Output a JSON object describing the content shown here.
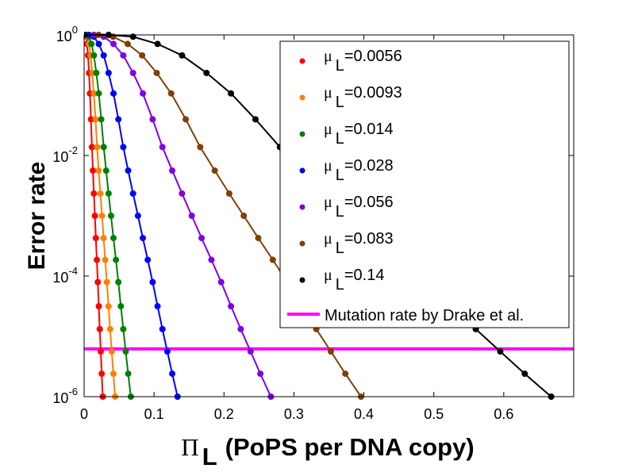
{
  "chart_data": {
    "type": "scatter",
    "xlabel_symbol": "Π",
    "xlabel_sub": "L",
    "xlabel_rest": "(PoPS per DNA copy)",
    "ylabel": "Error rate",
    "xlim": [
      0,
      0.7
    ],
    "ylim": [
      1e-06,
      1
    ],
    "yscale": "log",
    "grid": false,
    "legend_position": "top-right",
    "xticks": [
      "0",
      "0.1",
      "0.2",
      "0.3",
      "0.4",
      "0.5",
      "0.6"
    ],
    "xtick_values": [
      0,
      0.1,
      0.2,
      0.3,
      0.4,
      0.5,
      0.6
    ],
    "yticks": [
      {
        "base": "10",
        "exp": "0"
      },
      {
        "base": "10",
        "exp": "-2"
      },
      {
        "base": "10",
        "exp": "-4"
      },
      {
        "base": "10",
        "exp": "-6"
      }
    ],
    "ytick_values": [
      1,
      0.01,
      0.0001,
      1e-06
    ],
    "y": [
      1,
      1,
      0.933,
      0.708,
      0.457,
      0.234,
      0.107,
      0.0398,
      0.0138,
      0.00562,
      0.00234,
      0.001,
      0.000427,
      0.000186,
      7.94e-05,
      3.16e-05,
      1.32e-05,
      5.62e-06,
      2.4e-06,
      1e-06
    ],
    "series": [
      {
        "name_symbol": "μ",
        "name_sub": "L",
        "name_value": "=0.0056",
        "color": "#ff0000",
        "x": [
          0,
          0.0014,
          0.0028,
          0.0042,
          0.0056,
          0.007,
          0.0084,
          0.0098,
          0.0112,
          0.0126,
          0.014,
          0.0154,
          0.0168,
          0.0182,
          0.0196,
          0.021,
          0.0224,
          0.0238,
          0.0252,
          0.0267
        ]
      },
      {
        "name_symbol": "μ",
        "name_sub": "L",
        "name_value": "=0.0093",
        "color": "#ff8000",
        "x": [
          0,
          0.0023,
          0.0047,
          0.007,
          0.0093,
          0.0116,
          0.014,
          0.0163,
          0.0186,
          0.0209,
          0.0233,
          0.0256,
          0.0279,
          0.0302,
          0.0326,
          0.0349,
          0.0372,
          0.0395,
          0.0419,
          0.0444
        ]
      },
      {
        "name_symbol": "μ",
        "name_sub": "L",
        "name_value": "=0.014",
        "color": "#008000",
        "x": [
          0,
          0.0035,
          0.007,
          0.0105,
          0.014,
          0.0175,
          0.021,
          0.0245,
          0.028,
          0.0315,
          0.035,
          0.0385,
          0.042,
          0.0455,
          0.049,
          0.0525,
          0.056,
          0.0595,
          0.063,
          0.0668
        ]
      },
      {
        "name_symbol": "μ",
        "name_sub": "L",
        "name_value": "=0.028",
        "color": "#0000ff",
        "x": [
          0,
          0.007,
          0.014,
          0.021,
          0.028,
          0.035,
          0.042,
          0.049,
          0.056,
          0.063,
          0.07,
          0.077,
          0.084,
          0.091,
          0.098,
          0.105,
          0.112,
          0.119,
          0.126,
          0.1336
        ]
      },
      {
        "name_symbol": "μ",
        "name_sub": "L",
        "name_value": "=0.056",
        "color": "#8000e0",
        "x": [
          0,
          0.014,
          0.028,
          0.042,
          0.056,
          0.07,
          0.084,
          0.098,
          0.112,
          0.126,
          0.14,
          0.154,
          0.168,
          0.182,
          0.196,
          0.21,
          0.224,
          0.238,
          0.252,
          0.2671
        ]
      },
      {
        "name_symbol": "μ",
        "name_sub": "L",
        "name_value": "=0.083",
        "color": "#804000",
        "x": [
          0,
          0.0208,
          0.0415,
          0.0623,
          0.083,
          0.1038,
          0.1245,
          0.1453,
          0.166,
          0.1868,
          0.2075,
          0.2283,
          0.249,
          0.2698,
          0.2905,
          0.3113,
          0.332,
          0.3528,
          0.3735,
          0.3959
        ]
      },
      {
        "name_symbol": "μ",
        "name_sub": "L",
        "name_value": "=0.14",
        "color": "#000000",
        "x": [
          0,
          0.035,
          0.07,
          0.105,
          0.14,
          0.175,
          0.21,
          0.245,
          0.28,
          0.315,
          0.35,
          0.385,
          0.42,
          0.455,
          0.49,
          0.525,
          0.56,
          0.595,
          0.63,
          0.6678
        ]
      }
    ],
    "reference_line": {
      "name": "Mutation rate by Drake et al.",
      "value": 6.2e-06,
      "color": "#ff00ff"
    }
  }
}
